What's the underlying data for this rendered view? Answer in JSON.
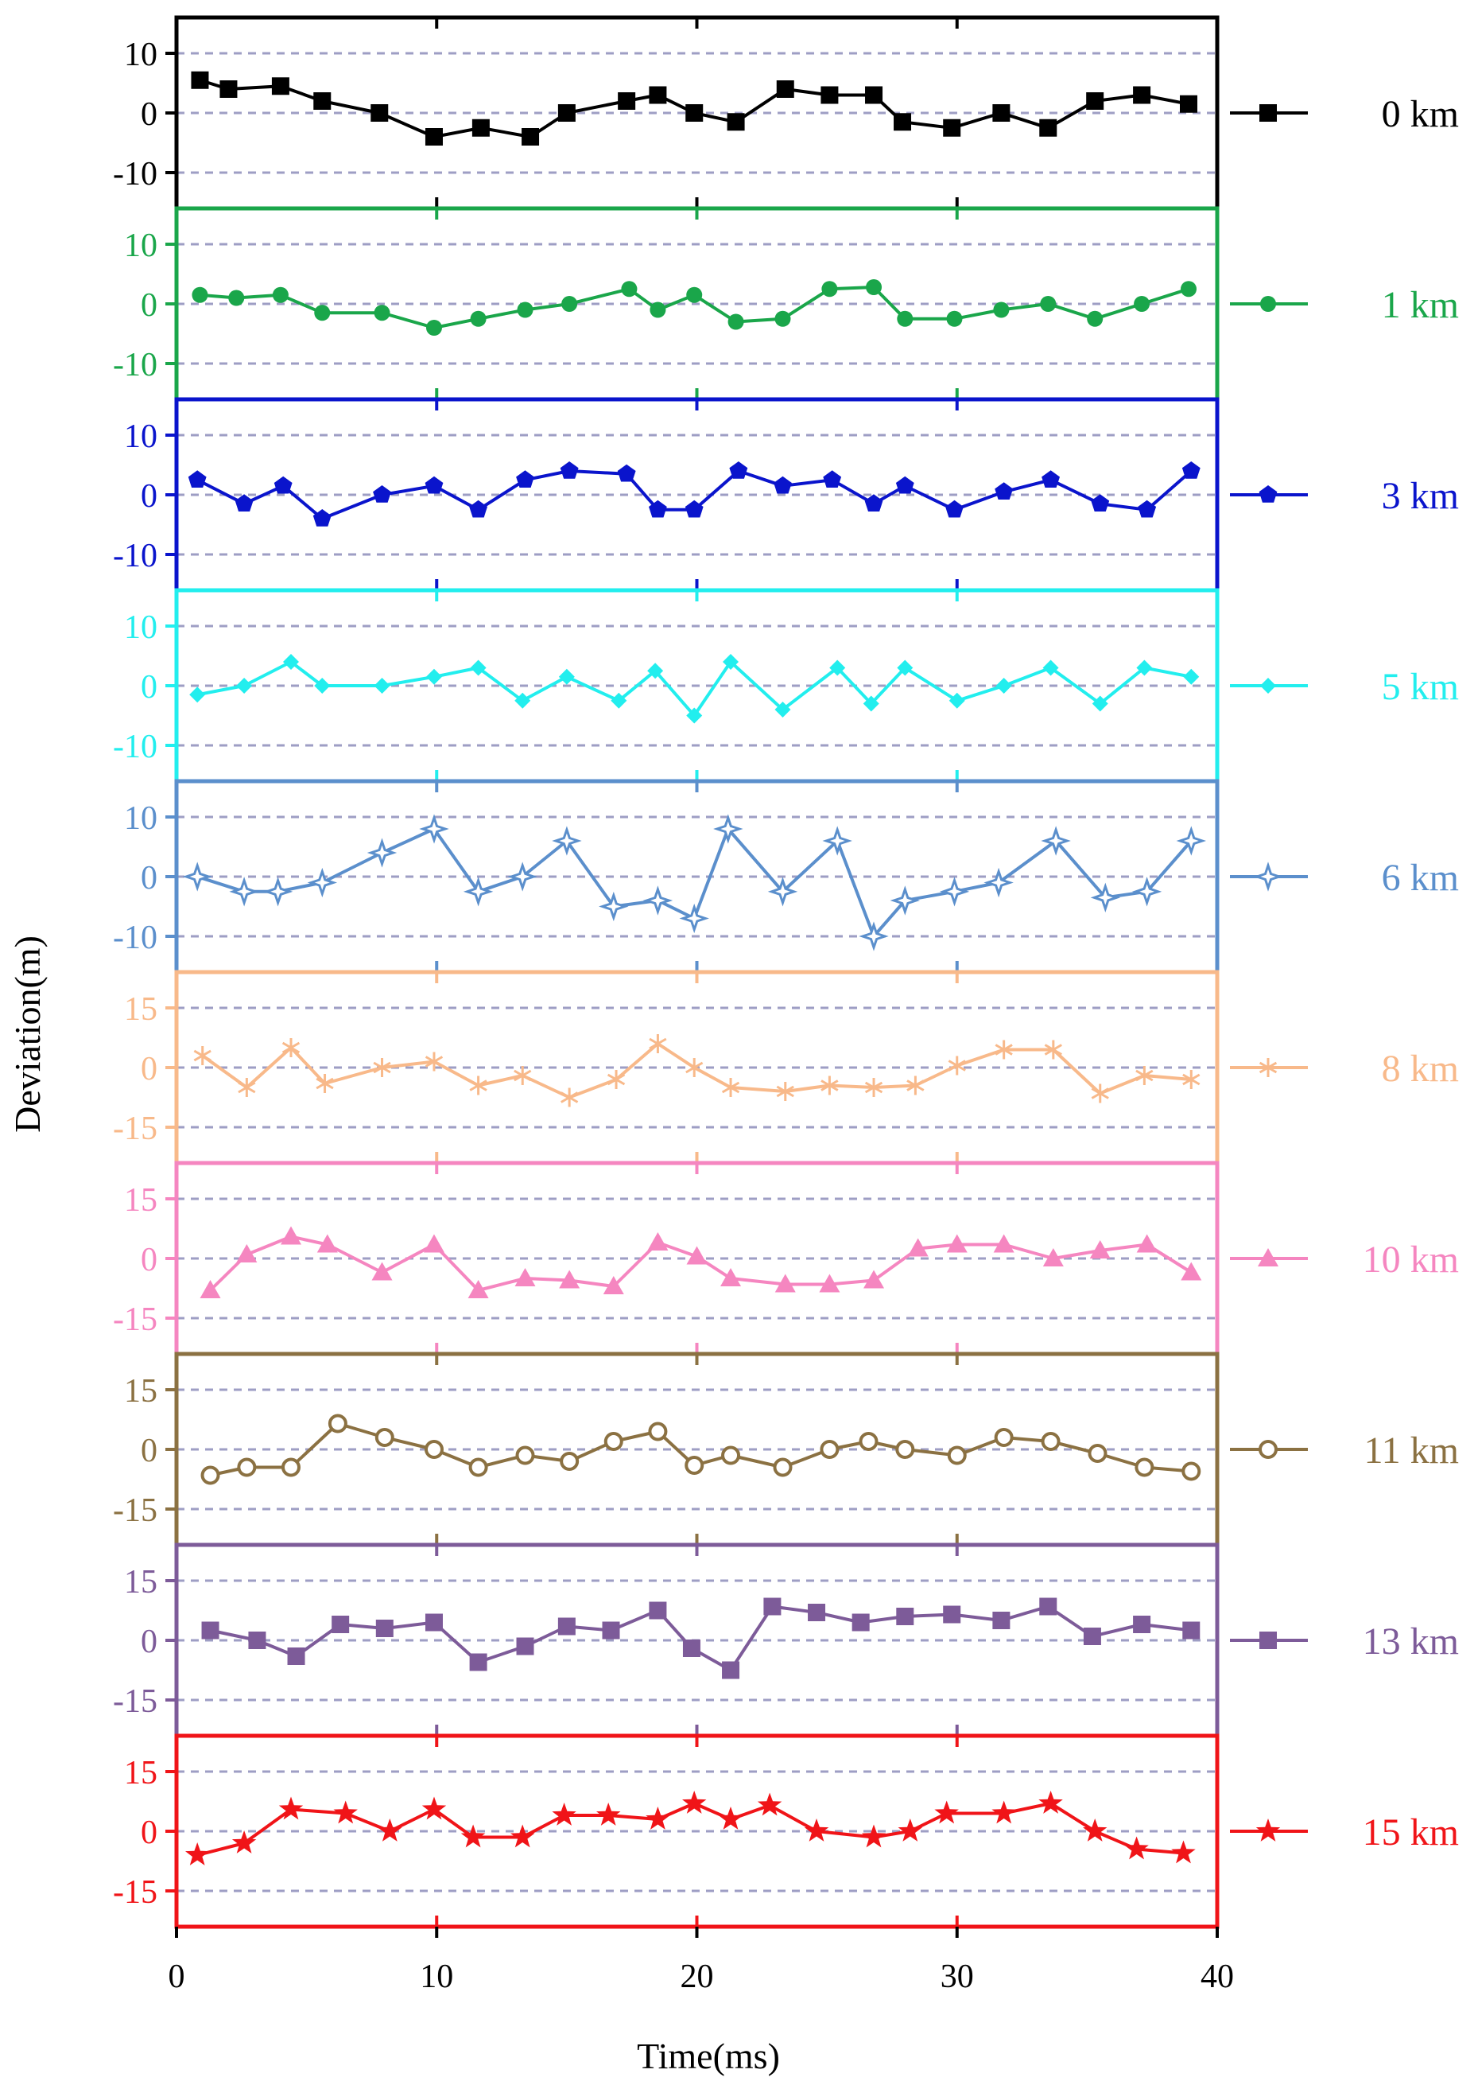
{
  "chart_data": {
    "type": "line",
    "xlabel": "Time(ms)",
    "ylabel": "Deviation(m)",
    "xlim": [
      0,
      40
    ],
    "xticks": [
      0,
      10,
      20,
      30,
      40
    ],
    "grid": "horizontal dashed",
    "panels": [
      {
        "name": "0 km",
        "color": "#000000",
        "marker": "square",
        "ylim": [
          -16,
          16
        ],
        "yticks": [
          -10,
          0,
          10
        ],
        "gridlines": [
          -10,
          0,
          10
        ],
        "x": [
          0.9,
          2.0,
          4.0,
          5.6,
          7.8,
          9.9,
          11.7,
          13.6,
          15.0,
          17.3,
          18.5,
          19.9,
          21.5,
          23.4,
          25.1,
          26.8,
          27.9,
          29.8,
          31.7,
          33.5,
          35.3,
          37.1,
          38.9
        ],
        "values": [
          5.5,
          4,
          4.5,
          2,
          0,
          -4,
          -2.5,
          -4,
          0,
          2,
          3,
          0,
          -1.5,
          4,
          3,
          3,
          -1.5,
          -2.5,
          0,
          -2.5,
          2,
          3,
          1.5
        ]
      },
      {
        "name": "1 km",
        "color": "#1aa64a",
        "marker": "circle",
        "ylim": [
          -16,
          16
        ],
        "yticks": [
          -10,
          0,
          10
        ],
        "gridlines": [
          -10,
          0,
          10
        ],
        "x": [
          0.9,
          2.3,
          4.0,
          5.6,
          7.9,
          9.9,
          11.6,
          13.4,
          15.1,
          17.4,
          18.5,
          19.9,
          21.5,
          23.3,
          25.1,
          26.8,
          28.0,
          29.9,
          31.7,
          33.5,
          35.3,
          37.1,
          38.9
        ],
        "values": [
          1.5,
          1,
          1.5,
          -1.5,
          -1.5,
          -4,
          -2.5,
          -1,
          0,
          2.5,
          -1,
          1.5,
          -3,
          -2.5,
          2.5,
          2.8,
          -2.5,
          -2.5,
          -1,
          0,
          -2.5,
          0,
          2.5
        ]
      },
      {
        "name": "3 km",
        "color": "#0a14cc",
        "marker": "pentagon",
        "ylim": [
          -16,
          16
        ],
        "yticks": [
          -10,
          0,
          10
        ],
        "gridlines": [
          -10,
          0,
          10
        ],
        "x": [
          0.8,
          2.6,
          4.1,
          5.6,
          7.9,
          9.9,
          11.6,
          13.4,
          15.1,
          17.3,
          18.5,
          19.9,
          21.6,
          23.3,
          25.2,
          26.8,
          28.0,
          29.9,
          31.8,
          33.6,
          35.5,
          37.3,
          39.0
        ],
        "values": [
          2.5,
          -1.5,
          1.5,
          -4,
          0,
          1.5,
          -2.5,
          2.5,
          4,
          3.5,
          -2.5,
          -2.5,
          4,
          1.5,
          2.5,
          -1.5,
          1.5,
          -2.5,
          0.5,
          2.5,
          -1.5,
          -2.5,
          4
        ]
      },
      {
        "name": "5 km",
        "color": "#22eeee",
        "marker": "diamond",
        "ylim": [
          -16,
          16
        ],
        "yticks": [
          -10,
          0,
          10
        ],
        "gridlines": [
          -10,
          0,
          10
        ],
        "x": [
          0.8,
          2.6,
          4.4,
          5.6,
          7.9,
          9.9,
          11.6,
          13.3,
          15.0,
          17.0,
          18.4,
          19.9,
          21.3,
          23.3,
          25.4,
          26.7,
          28.0,
          30.0,
          31.8,
          33.6,
          35.5,
          37.2,
          39.0
        ],
        "values": [
          -1.5,
          0,
          4,
          0,
          0,
          1.5,
          3,
          -2.5,
          1.5,
          -2.5,
          2.5,
          -5,
          4,
          -4,
          3,
          -3,
          3,
          -2.5,
          0,
          3,
          -3,
          3,
          1.5
        ]
      },
      {
        "name": "6 km",
        "color": "#5b8fcc",
        "marker": "star4",
        "ylim": [
          -16,
          16
        ],
        "yticks": [
          -10,
          0,
          10
        ],
        "gridlines": [
          -10,
          0,
          10
        ],
        "x": [
          0.8,
          2.6,
          3.9,
          5.6,
          7.9,
          9.9,
          11.6,
          13.3,
          15.0,
          16.8,
          18.5,
          19.9,
          21.2,
          23.3,
          25.4,
          26.8,
          28.0,
          29.9,
          31.6,
          33.8,
          35.7,
          37.3,
          39.0
        ],
        "values": [
          0,
          -2.5,
          -2.5,
          -1,
          4,
          8,
          -2.5,
          0,
          6,
          -5,
          -4,
          -7,
          8,
          -2.5,
          6,
          -10,
          -4,
          -2.5,
          -1,
          6,
          -3.5,
          -2.5,
          6
        ]
      },
      {
        "name": "8 km",
        "color": "#f8b98a",
        "marker": "asterisk",
        "ylim": [
          -24,
          24
        ],
        "yticks": [
          -15,
          0,
          15
        ],
        "gridlines": [
          -15,
          0,
          15
        ],
        "x": [
          1.0,
          2.7,
          4.4,
          5.7,
          7.9,
          9.9,
          11.6,
          13.3,
          15.1,
          16.9,
          18.5,
          19.9,
          21.3,
          23.4,
          25.1,
          26.8,
          28.4,
          30.0,
          31.8,
          33.7,
          35.5,
          37.2,
          39.0
        ],
        "values": [
          3,
          -5,
          5,
          -4,
          0,
          1.5,
          -4.5,
          -2,
          -7.5,
          -3,
          6,
          0,
          -5,
          -6,
          -4.5,
          -5,
          -4.5,
          0.5,
          4.5,
          4.5,
          -6.5,
          -2,
          -3
        ]
      },
      {
        "name": "10 km",
        "color": "#f586c0",
        "marker": "triangle",
        "ylim": [
          -24,
          24
        ],
        "yticks": [
          -15,
          0,
          15
        ],
        "gridlines": [
          -15,
          0,
          15
        ],
        "x": [
          1.3,
          2.7,
          4.4,
          5.8,
          7.9,
          9.9,
          11.6,
          13.4,
          15.1,
          16.8,
          18.5,
          20.0,
          21.3,
          23.4,
          25.1,
          26.8,
          28.5,
          30.0,
          31.8,
          33.7,
          35.5,
          37.3,
          39.0
        ],
        "values": [
          -8,
          1,
          5.5,
          3.5,
          -3.5,
          3.5,
          -8,
          -5,
          -5.5,
          -7,
          4,
          0.5,
          -5,
          -6.5,
          -6.5,
          -5.5,
          2.5,
          3.5,
          3.5,
          0,
          2,
          3.5,
          -3.5
        ]
      },
      {
        "name": "11 km",
        "color": "#8b7142",
        "marker": "circle-open",
        "ylim": [
          -24,
          24
        ],
        "yticks": [
          -15,
          0,
          15
        ],
        "gridlines": [
          -15,
          0,
          15
        ],
        "x": [
          1.3,
          2.7,
          4.4,
          6.2,
          8.0,
          9.9,
          11.6,
          13.4,
          15.1,
          16.8,
          18.5,
          19.9,
          21.3,
          23.3,
          25.1,
          26.6,
          28.0,
          30.0,
          31.8,
          33.6,
          35.4,
          37.2,
          39.0
        ],
        "values": [
          -6.5,
          -4.5,
          -4.5,
          6.5,
          3,
          0,
          -4.5,
          -1.5,
          -3,
          2,
          4.5,
          -4,
          -1.5,
          -4.5,
          0,
          2,
          0,
          -1.5,
          3,
          2,
          -1,
          -4.5,
          -5.5
        ]
      },
      {
        "name": "13 km",
        "color": "#7d5b99",
        "marker": "square",
        "ylim": [
          -24,
          24
        ],
        "yticks": [
          -15,
          0,
          15
        ],
        "gridlines": [
          -15,
          0,
          15
        ],
        "x": [
          1.3,
          3.1,
          4.6,
          6.3,
          8.0,
          9.9,
          11.6,
          13.4,
          15.0,
          16.7,
          18.5,
          19.8,
          21.3,
          22.9,
          24.6,
          26.3,
          28.0,
          29.8,
          31.7,
          33.5,
          35.2,
          37.1,
          39.0
        ],
        "values": [
          2.5,
          0,
          -4,
          4,
          3,
          4.5,
          -5.5,
          -1.5,
          3.5,
          2.5,
          7.5,
          -2,
          -7.5,
          8.5,
          7,
          4.5,
          6,
          6.5,
          5,
          8.5,
          1,
          4,
          2.5
        ]
      },
      {
        "name": "15 km",
        "color": "#f01418",
        "marker": "star5",
        "ylim": [
          -24,
          24
        ],
        "yticks": [
          -15,
          0,
          15
        ],
        "gridlines": [
          -15,
          0,
          15
        ],
        "x": [
          0.8,
          2.6,
          4.4,
          6.5,
          8.2,
          9.9,
          11.4,
          13.3,
          14.9,
          16.6,
          18.5,
          19.9,
          21.3,
          22.8,
          24.6,
          26.8,
          28.2,
          29.6,
          31.8,
          33.6,
          35.3,
          36.9,
          38.7
        ],
        "values": [
          -6,
          -3,
          5.5,
          4.5,
          0,
          5.5,
          -1.5,
          -1.5,
          4,
          4,
          3,
          7,
          3,
          6.5,
          0,
          -1.5,
          0,
          4.5,
          4.5,
          7,
          0,
          -4.5,
          -5.5
        ]
      }
    ]
  }
}
